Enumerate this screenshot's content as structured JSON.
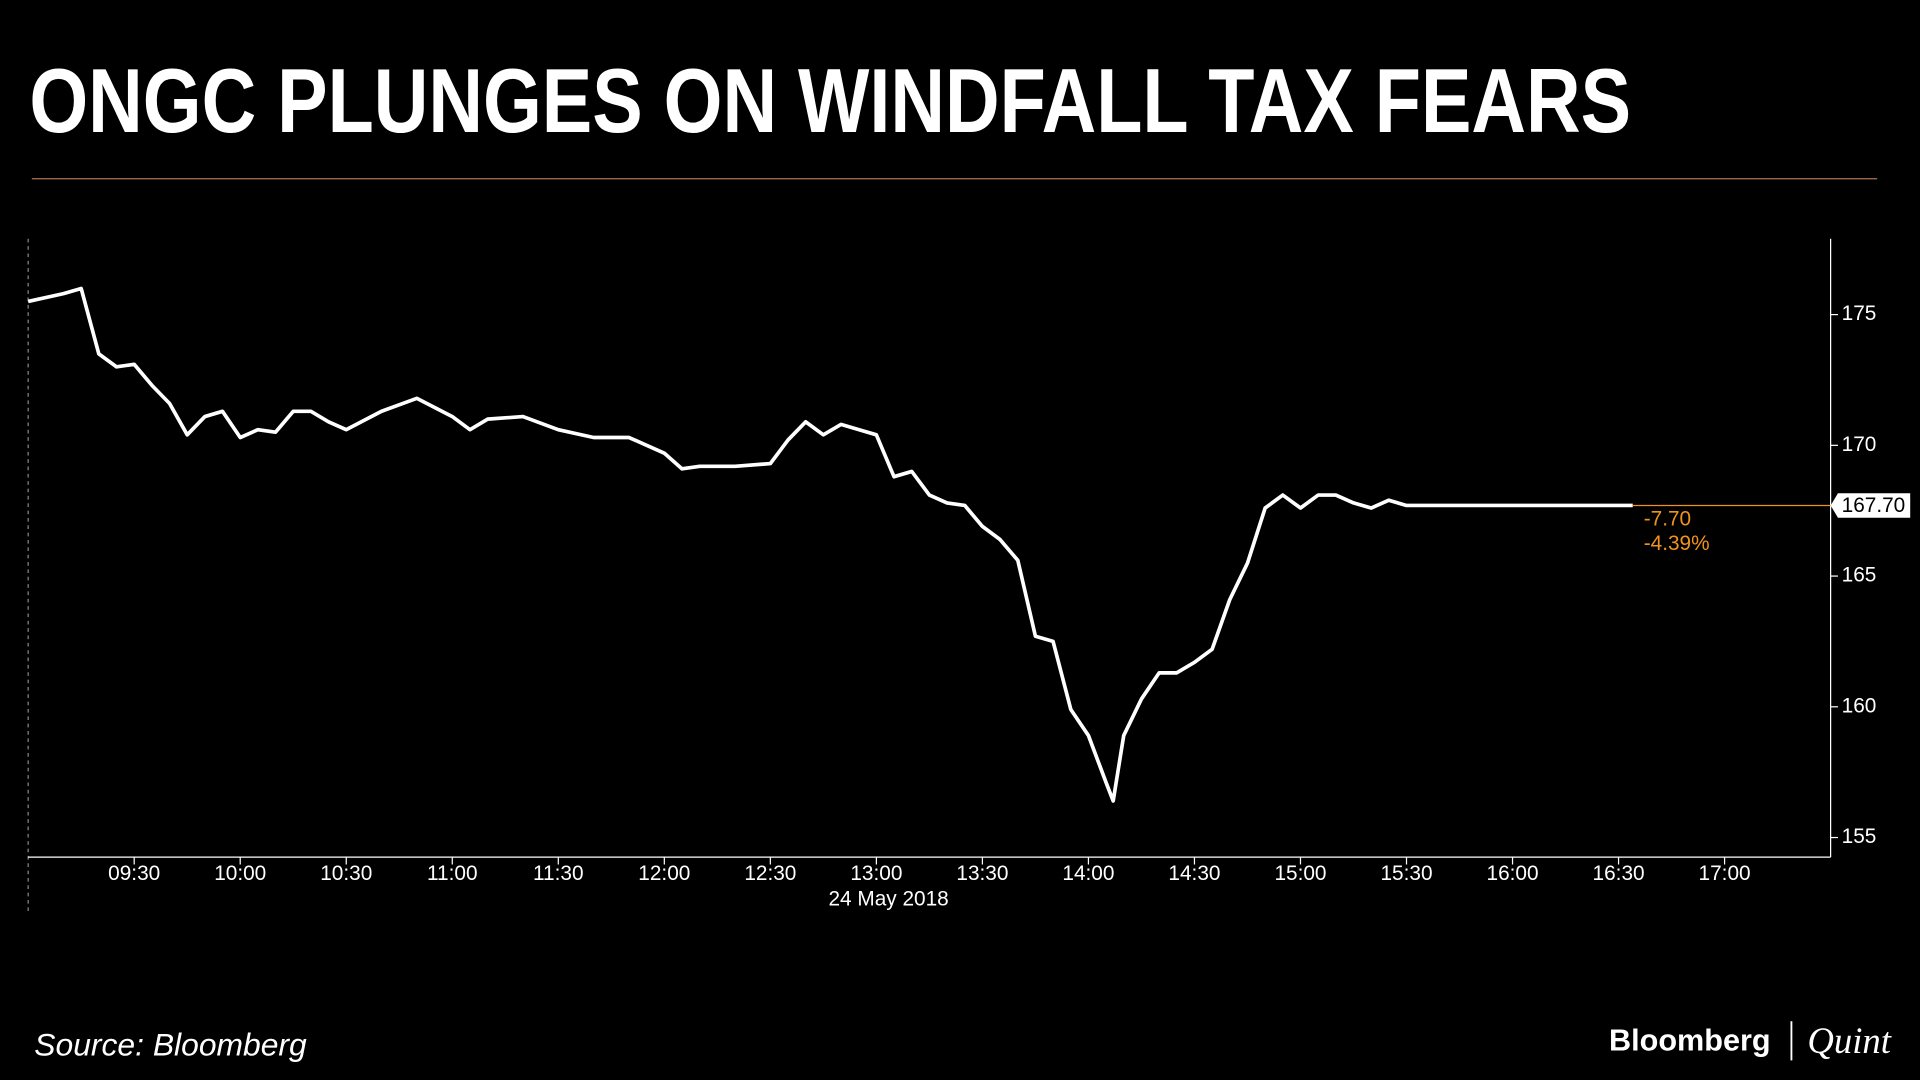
{
  "chart_data": {
    "type": "line",
    "title": "ONGC PLUNGES ON WINDFALL TAX FEARS",
    "x_label": "24 May 2018",
    "x": [
      "09:00",
      "09:10",
      "09:15",
      "09:20",
      "09:25",
      "09:30",
      "09:35",
      "09:40",
      "09:45",
      "09:50",
      "09:55",
      "10:00",
      "10:05",
      "10:10",
      "10:15",
      "10:20",
      "10:25",
      "10:30",
      "10:40",
      "10:50",
      "11:00",
      "11:05",
      "11:10",
      "11:20",
      "11:30",
      "11:40",
      "11:50",
      "12:00",
      "12:05",
      "12:10",
      "12:20",
      "12:30",
      "12:35",
      "12:40",
      "12:45",
      "12:50",
      "12:55",
      "13:00",
      "13:05",
      "13:10",
      "13:15",
      "13:20",
      "13:25",
      "13:30",
      "13:35",
      "13:40",
      "13:45",
      "13:50",
      "13:55",
      "14:00",
      "14:05",
      "14:07",
      "14:10",
      "14:15",
      "14:20",
      "14:25",
      "14:30",
      "14:35",
      "14:40",
      "14:45",
      "14:50",
      "14:55",
      "15:00",
      "15:05",
      "15:10",
      "15:15",
      "15:20",
      "15:25",
      "15:30",
      "16:00",
      "16:34"
    ],
    "series": [
      {
        "name": "ONGC",
        "color": "#ffffff",
        "values": [
          175.5,
          175.8,
          176.0,
          173.5,
          173.0,
          173.1,
          172.3,
          171.6,
          170.4,
          171.1,
          171.3,
          170.3,
          170.6,
          170.5,
          171.3,
          171.3,
          170.9,
          170.6,
          171.3,
          171.8,
          171.1,
          170.6,
          171.0,
          171.1,
          170.6,
          170.3,
          170.3,
          169.7,
          169.1,
          169.2,
          169.2,
          169.3,
          170.2,
          170.9,
          170.4,
          170.8,
          170.6,
          170.4,
          168.8,
          169.0,
          168.1,
          167.8,
          167.7,
          166.9,
          166.4,
          165.6,
          162.7,
          162.5,
          159.9,
          158.9,
          157.1,
          156.4,
          158.9,
          160.3,
          161.3,
          161.3,
          161.7,
          162.2,
          164.1,
          165.5,
          167.6,
          168.1,
          167.6,
          168.1,
          168.1,
          167.8,
          167.6,
          167.9,
          167.7,
          167.7,
          167.7
        ]
      }
    ],
    "last_value_label": "167.70",
    "change_labels": [
      "-7.70",
      "-4.39%"
    ],
    "highlight_color": "#f0931e",
    "xlim": [
      "09:00",
      "17:30"
    ],
    "xticks": [
      "09:30",
      "10:00",
      "10:30",
      "11:00",
      "11:30",
      "12:00",
      "12:30",
      "13:00",
      "13:30",
      "14:00",
      "14:30",
      "15:00",
      "15:30",
      "16:00",
      "16:30",
      "17:00"
    ],
    "ylim": [
      154.25,
      177.9
    ],
    "yticks": [
      155,
      160,
      165,
      170,
      175
    ],
    "source": "Source: Bloomberg",
    "brand": [
      "Bloomberg",
      "Quint"
    ]
  }
}
